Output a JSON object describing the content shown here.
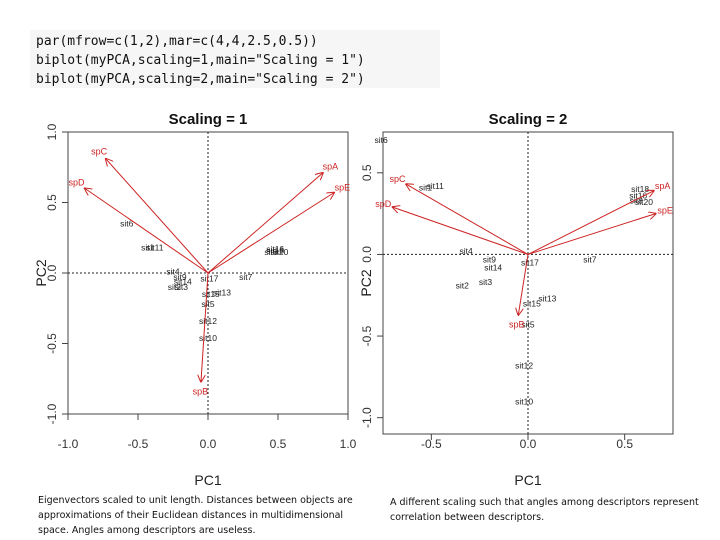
{
  "code_lines": [
    "par(mfrow=c(1,2),mar=c(4,4,2.5,0.5))",
    "biplot(myPCA,scaling=1,main=\"Scaling = 1\")",
    "biplot(myPCA,scaling=2,main=\"Scaling = 2\")"
  ],
  "captions": {
    "left": "Eigenvectors scaled to unit length. Distances between objects are approximations of their Euclidean distances in multidimensional space. Angles among descriptors are useless.",
    "right": "A different scaling such that angles among descriptors represent correlation between descriptors."
  },
  "colors": {
    "arrow": "#cc2222",
    "site": "#222222",
    "axis": "#444444"
  },
  "chart_data": [
    {
      "type": "scatter",
      "title": "Scaling = 1",
      "xlabel": "PC1",
      "ylabel": "PC2",
      "xlim": [
        -1.0,
        1.0
      ],
      "ylim": [
        -1.0,
        1.0
      ],
      "xticks": [
        "-1.0",
        "-0.5",
        "0.0",
        "0.5",
        "1.0"
      ],
      "yticks": [
        "-1.0",
        "-0.5",
        "0.0",
        "0.5",
        "1.0"
      ],
      "ref_lines": [
        0,
        0
      ],
      "sites": [
        {
          "label": "sit6",
          "x": -0.58,
          "y": 0.35
        },
        {
          "label": "sit11",
          "x": -0.38,
          "y": 0.18
        },
        {
          "label": "sit1",
          "x": -0.43,
          "y": 0.18
        },
        {
          "label": "sit4",
          "x": -0.25,
          "y": 0.01
        },
        {
          "label": "sit9",
          "x": -0.2,
          "y": -0.03
        },
        {
          "label": "sit14",
          "x": -0.18,
          "y": -0.06
        },
        {
          "label": "sit2",
          "x": -0.24,
          "y": -0.1
        },
        {
          "label": "sit3",
          "x": -0.19,
          "y": -0.1
        },
        {
          "label": "sit17",
          "x": 0.01,
          "y": -0.04
        },
        {
          "label": "sit7",
          "x": 0.27,
          "y": -0.03
        },
        {
          "label": "sit13",
          "x": 0.1,
          "y": -0.14
        },
        {
          "label": "sit15",
          "x": 0.02,
          "y": -0.15
        },
        {
          "label": "sit5",
          "x": 0.0,
          "y": -0.22
        },
        {
          "label": "sit12",
          "x": 0.0,
          "y": -0.34
        },
        {
          "label": "sit10",
          "x": 0.0,
          "y": -0.46
        },
        {
          "label": "sit16",
          "x": 0.48,
          "y": 0.17
        },
        {
          "label": "sit18",
          "x": 0.48,
          "y": 0.16
        },
        {
          "label": "sit8",
          "x": 0.45,
          "y": 0.15
        },
        {
          "label": "sit20",
          "x": 0.51,
          "y": 0.15
        }
      ],
      "arrows": [
        {
          "label": "spC",
          "x": -0.73,
          "y": 0.81
        },
        {
          "label": "spD",
          "x": -0.88,
          "y": 0.6
        },
        {
          "label": "spA",
          "x": 0.82,
          "y": 0.71
        },
        {
          "label": "spE",
          "x": 0.9,
          "y": 0.57
        },
        {
          "label": "spB",
          "x": -0.05,
          "y": -0.77
        }
      ]
    },
    {
      "type": "scatter",
      "title": "Scaling = 2",
      "xlabel": "PC1",
      "ylabel": "PC2",
      "xlim": [
        -0.75,
        0.75
      ],
      "ylim": [
        -1.1,
        0.75
      ],
      "xticks": [
        "-0.5",
        "0.0",
        "0.5"
      ],
      "yticks": [
        "-1.0",
        "-0.5",
        "0.0",
        "0.5"
      ],
      "ref_lines": [
        0,
        0
      ],
      "sites": [
        {
          "label": "sit6",
          "x": -0.76,
          "y": 0.7
        },
        {
          "label": "sit11",
          "x": -0.48,
          "y": 0.42
        },
        {
          "label": "sit1",
          "x": -0.53,
          "y": 0.41
        },
        {
          "label": "sit4",
          "x": -0.32,
          "y": 0.02
        },
        {
          "label": "sit9",
          "x": -0.2,
          "y": -0.03
        },
        {
          "label": "sit14",
          "x": -0.18,
          "y": -0.08
        },
        {
          "label": "sit2",
          "x": -0.34,
          "y": -0.19
        },
        {
          "label": "sit3",
          "x": -0.22,
          "y": -0.17
        },
        {
          "label": "sit17",
          "x": 0.01,
          "y": -0.05
        },
        {
          "label": "sit7",
          "x": 0.32,
          "y": -0.03
        },
        {
          "label": "sit13",
          "x": 0.1,
          "y": -0.27
        },
        {
          "label": "sit15",
          "x": 0.02,
          "y": -0.3
        },
        {
          "label": "sit5",
          "x": 0.0,
          "y": -0.43
        },
        {
          "label": "sit12",
          "x": -0.02,
          "y": -0.68
        },
        {
          "label": "sit10",
          "x": -0.02,
          "y": -0.9
        },
        {
          "label": "sit18",
          "x": 0.58,
          "y": 0.4
        },
        {
          "label": "sit16",
          "x": 0.57,
          "y": 0.36
        },
        {
          "label": "sit8",
          "x": 0.56,
          "y": 0.33
        },
        {
          "label": "sit20",
          "x": 0.6,
          "y": 0.32
        }
      ],
      "arrows": [
        {
          "label": "spC",
          "x": -0.63,
          "y": 0.43
        },
        {
          "label": "spD",
          "x": -0.7,
          "y": 0.29
        },
        {
          "label": "spA",
          "x": 0.65,
          "y": 0.39
        },
        {
          "label": "spE",
          "x": 0.66,
          "y": 0.25
        },
        {
          "label": "spB",
          "x": -0.05,
          "y": -0.37
        }
      ]
    }
  ]
}
